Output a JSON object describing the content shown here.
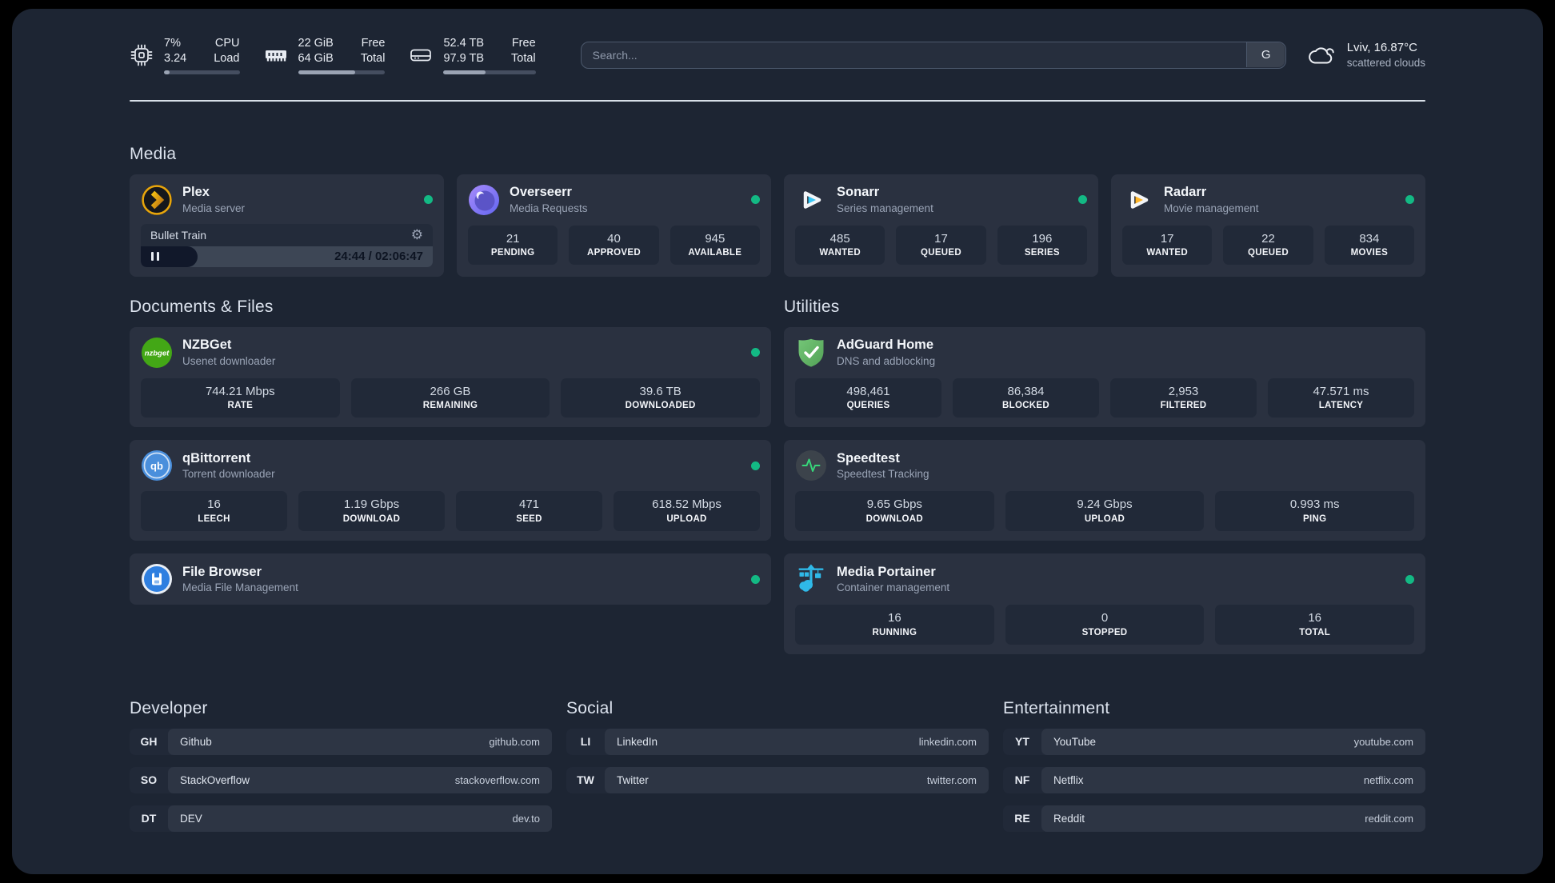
{
  "topbar": {
    "resources": [
      {
        "icon": "cpu-icon",
        "value_top": "7%",
        "value_bottom": "3.24",
        "label_top": "CPU",
        "label_bottom": "Load",
        "percent": 7
      },
      {
        "icon": "memory-icon",
        "value_top": "22 GiB",
        "value_bottom": "64 GiB",
        "label_top": "Free",
        "label_bottom": "Total",
        "percent": 66
      },
      {
        "icon": "disk-icon",
        "value_top": "52.4 TB",
        "value_bottom": "97.9 TB",
        "label_top": "Free",
        "label_bottom": "Total",
        "percent": 46
      }
    ],
    "search": {
      "placeholder": "Search...",
      "provider_button": "G"
    },
    "weather": {
      "icon": "cloud-icon",
      "location": "Lviv, 16.87°C",
      "condition": "scattered clouds"
    }
  },
  "sections": {
    "media": "Media",
    "documents": "Documents & Files",
    "utilities": "Utilities"
  },
  "services": {
    "plex": {
      "icon": "plex-icon",
      "name": "Plex",
      "desc": "Media server",
      "online": true,
      "player": {
        "title": "Bullet Train",
        "time": "24:44 / 02:06:47",
        "progress_percent": 19.5
      }
    },
    "overseerr": {
      "icon": "overseerr-icon",
      "name": "Overseerr",
      "desc": "Media Requests",
      "online": true,
      "stats": [
        {
          "value": "21",
          "label": "PENDING"
        },
        {
          "value": "40",
          "label": "APPROVED"
        },
        {
          "value": "945",
          "label": "AVAILABLE"
        }
      ]
    },
    "sonarr": {
      "icon": "sonarr-icon",
      "name": "Sonarr",
      "desc": "Series management",
      "online": true,
      "stats": [
        {
          "value": "485",
          "label": "WANTED"
        },
        {
          "value": "17",
          "label": "QUEUED"
        },
        {
          "value": "196",
          "label": "SERIES"
        }
      ]
    },
    "radarr": {
      "icon": "radarr-icon",
      "name": "Radarr",
      "desc": "Movie management",
      "online": true,
      "stats": [
        {
          "value": "17",
          "label": "WANTED"
        },
        {
          "value": "22",
          "label": "QUEUED"
        },
        {
          "value": "834",
          "label": "MOVIES"
        }
      ]
    },
    "nzbget": {
      "icon": "nzbget-icon",
      "name": "NZBGet",
      "desc": "Usenet downloader",
      "online": true,
      "stats": [
        {
          "value": "744.21 Mbps",
          "label": "RATE"
        },
        {
          "value": "266 GB",
          "label": "REMAINING"
        },
        {
          "value": "39.6 TB",
          "label": "DOWNLOADED"
        }
      ]
    },
    "qbittorrent": {
      "icon": "qbittorrent-icon",
      "name": "qBittorrent",
      "desc": "Torrent downloader",
      "online": true,
      "stats": [
        {
          "value": "16",
          "label": "LEECH"
        },
        {
          "value": "1.19 Gbps",
          "label": "DOWNLOAD"
        },
        {
          "value": "471",
          "label": "SEED"
        },
        {
          "value": "618.52 Mbps",
          "label": "UPLOAD"
        }
      ]
    },
    "filebrowser": {
      "icon": "filebrowser-icon",
      "name": "File Browser",
      "desc": "Media File Management",
      "online": true
    },
    "adguard": {
      "icon": "adguard-icon",
      "name": "AdGuard Home",
      "desc": "DNS and adblocking",
      "stats": [
        {
          "value": "498,461",
          "label": "QUERIES"
        },
        {
          "value": "86,384",
          "label": "BLOCKED"
        },
        {
          "value": "2,953",
          "label": "FILTERED"
        },
        {
          "value": "47.571 ms",
          "label": "LATENCY"
        }
      ]
    },
    "speedtest": {
      "icon": "speedtest-icon",
      "name": "Speedtest",
      "desc": "Speedtest Tracking",
      "stats": [
        {
          "value": "9.65 Gbps",
          "label": "DOWNLOAD"
        },
        {
          "value": "9.24 Gbps",
          "label": "UPLOAD"
        },
        {
          "value": "0.993 ms",
          "label": "PING"
        }
      ]
    },
    "portainer": {
      "icon": "portainer-icon",
      "name": "Media Portainer",
      "desc": "Container management",
      "online": true,
      "stats": [
        {
          "value": "16",
          "label": "RUNNING"
        },
        {
          "value": "0",
          "label": "STOPPED"
        },
        {
          "value": "16",
          "label": "TOTAL"
        }
      ]
    }
  },
  "bookmarks": [
    {
      "title": "Developer",
      "items": [
        {
          "abbr": "GH",
          "name": "Github",
          "url": "github.com"
        },
        {
          "abbr": "SO",
          "name": "StackOverflow",
          "url": "stackoverflow.com"
        },
        {
          "abbr": "DT",
          "name": "DEV",
          "url": "dev.to"
        }
      ]
    },
    {
      "title": "Social",
      "items": [
        {
          "abbr": "LI",
          "name": "LinkedIn",
          "url": "linkedin.com"
        },
        {
          "abbr": "TW",
          "name": "Twitter",
          "url": "twitter.com"
        }
      ]
    },
    {
      "title": "Entertainment",
      "items": [
        {
          "abbr": "YT",
          "name": "YouTube",
          "url": "youtube.com"
        },
        {
          "abbr": "NF",
          "name": "Netflix",
          "url": "netflix.com"
        },
        {
          "abbr": "RE",
          "name": "Reddit",
          "url": "reddit.com"
        }
      ]
    }
  ],
  "colors": {
    "page_bg": "#1d2533",
    "card_bg": "#2a3140",
    "stat_bg": "#212938",
    "status_online_green": "#13b984",
    "plex_gold": "#e7a50d",
    "sonarr_cyan": "#38c6f4",
    "radarr_amber": "#ffb528",
    "nzbget_green": "#43a716",
    "adguard_green": "#67bd6a",
    "portainer_blue": "#2fb9e8",
    "speedtest_green": "#37d67a"
  }
}
